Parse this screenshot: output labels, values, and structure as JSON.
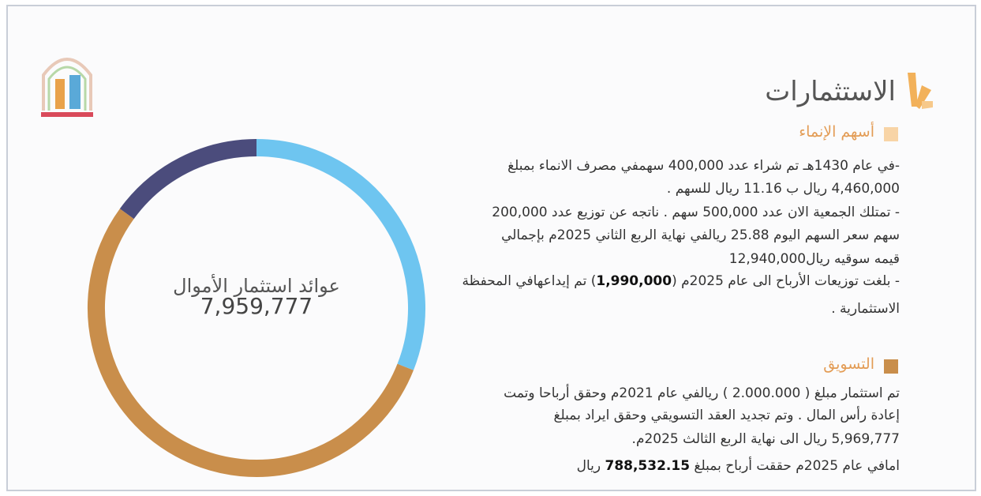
{
  "header": {
    "title": "الاستثمارات"
  },
  "sections": [
    {
      "heading": "أسهم الإنماء",
      "lines": [
        [
          "-في عام 1430هـ تم شراء عدد 400,000 سهمفي مصرف الانماء بمبلغ"
        ],
        [
          "4,460,000 ريال ب 11.16 ريال للسهم ."
        ],
        [
          "- تمتلك الجمعية الان عدد 500,000 سهم . ناتجه عن توزيع عدد 200,000"
        ],
        [
          "سهم سعر السهم اليوم 25.88 ريالفي نهاية الربع الثاني 2025م بإجمالي"
        ],
        [
          "قيمه سوقيه ريال12,940,000"
        ],
        [
          "- بلغت توزيعات الأرباح الى عام 2025م (",
          "1,990,000",
          ") تم إيداعهافي المحفظة"
        ],
        [
          "الاستثمارية ."
        ]
      ]
    },
    {
      "heading": "التسويق",
      "lines": [
        [
          "تم استثمار مبلغ ( 2.000.000 ) ريالفي عام 2021م وحقق أرباحا وتمت"
        ],
        [
          "إعادة رأس المال . وتم تجديد العقد التسويقي وحقق ايراد بمبلغ"
        ],
        [
          "5,969,777 ريال الى نهاية الربع الثالث 2025م."
        ],
        [
          "امافي عام 2025م حققت أرباح بمبلغ ",
          "788,532.15",
          " ريال"
        ]
      ]
    }
  ],
  "chart_data": {
    "type": "donut",
    "title": "عوائد استثمار الأموال",
    "total_label": "7,959,777",
    "values": [
      31,
      54,
      15
    ],
    "colors": [
      "#6ec5f0",
      "#c98e4b",
      "#4b4c7c"
    ]
  }
}
